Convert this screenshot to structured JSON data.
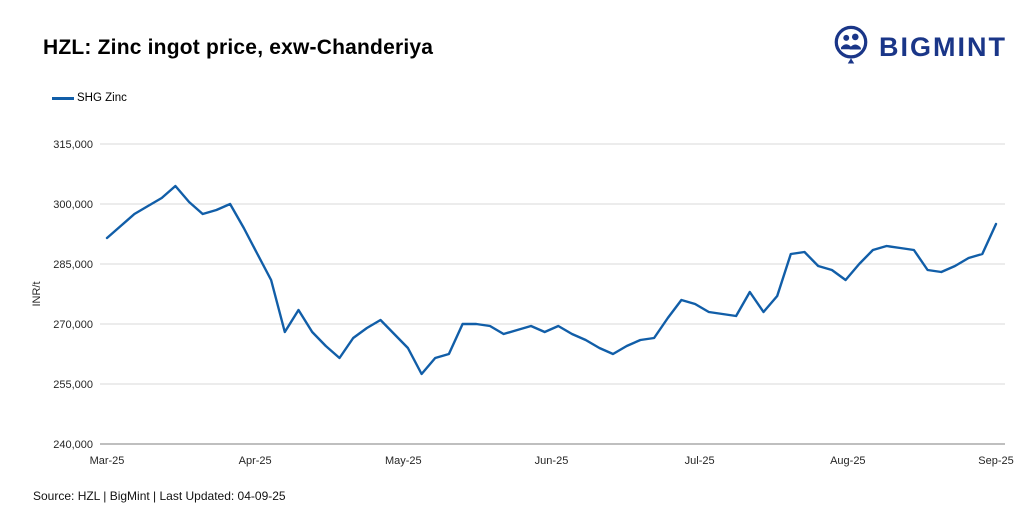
{
  "header": {
    "title": "HZL: Zinc ingot price, exw-Chanderiya",
    "brand": "BIGMINT",
    "brand_color": "#1a3688"
  },
  "legend": {
    "label": "SHG Zinc"
  },
  "footer": {
    "source_text": "Source: HZL | BigMint | Last Updated: 04-09-25"
  },
  "chart_data": {
    "type": "line",
    "title": "HZL: Zinc ingot price, exw-Chanderiya",
    "ylabel": "INR/t",
    "xlabel": "",
    "grid": "horizontal",
    "legend_position": "top-left",
    "ylim": [
      240000,
      315000
    ],
    "y_ticks": [
      240000,
      255000,
      270000,
      285000,
      300000,
      315000
    ],
    "x_tick_labels": [
      "Mar-25",
      "Apr-25",
      "May-25",
      "Jun-25",
      "Jul-25",
      "Aug-25",
      "Sep-25"
    ],
    "series": [
      {
        "name": "SHG Zinc",
        "color": "#115ea8",
        "values": [
          291500,
          294500,
          297500,
          299500,
          301500,
          304500,
          300500,
          297500,
          298500,
          300000,
          294000,
          287500,
          281000,
          268000,
          273500,
          268000,
          264500,
          261500,
          266500,
          269000,
          271000,
          267500,
          264000,
          257500,
          261500,
          262500,
          270000,
          270000,
          269500,
          267500,
          268500,
          269500,
          268000,
          269500,
          267500,
          266000,
          264000,
          262500,
          264500,
          266000,
          266500,
          271500,
          276000,
          275000,
          273000,
          272500,
          272000,
          278000,
          273000,
          277000,
          287500,
          288000,
          284500,
          283500,
          281000,
          285000,
          288500,
          289500,
          289000,
          288500,
          283500,
          283000,
          284500,
          286500,
          287500,
          295000
        ]
      }
    ]
  }
}
